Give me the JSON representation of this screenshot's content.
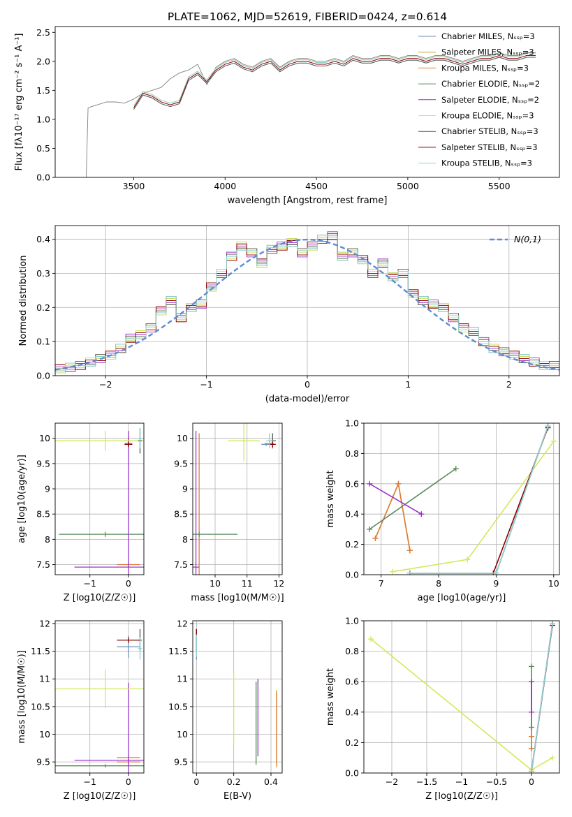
{
  "figure_title": "PLATE=1062, MJD=52619, FIBERID=0424, z=0.614",
  "series_styles": [
    {
      "name": "Chabrier MILES",
      "color": "#6c8ebf"
    },
    {
      "name": "Salpeter MILES",
      "color": "#c9a227"
    },
    {
      "name": "Kroupa MILES",
      "color": "#e07b39"
    },
    {
      "name": "Chabrier ELODIE",
      "color": "#5a8a5a"
    },
    {
      "name": "Salpeter ELODIE",
      "color": "#9932cc"
    },
    {
      "name": "Kroupa ELODIE",
      "color": "#d4e85a"
    },
    {
      "name": "Chabrier STELIB",
      "color": "#555555"
    },
    {
      "name": "Salpeter STELIB",
      "color": "#8b0000"
    },
    {
      "name": "Kroupa STELIB",
      "color": "#8fd3d3"
    }
  ],
  "chart_data": [
    {
      "id": "spectrum",
      "type": "line",
      "xlabel": "wavelength [Angstrom, rest frame]",
      "ylabel": "Flux [fλ10⁻¹⁷ erg cm⁻² s⁻¹ A⁻¹]",
      "xlim": [
        3070,
        5830
      ],
      "ylim": [
        0,
        2.6
      ],
      "xticks": [
        3500,
        4000,
        4500,
        5000,
        5500
      ],
      "yticks": [
        0.0,
        0.5,
        1.0,
        1.5,
        2.0,
        2.5
      ],
      "legend_position": "top-right",
      "legend": [
        "Chabrier MILES, N_SSP=3",
        "Salpeter MILES, N_SSP=3",
        "Kroupa MILES, N_SSP=3",
        "Chabrier ELODIE, N_SSP=2",
        "Salpeter ELODIE, N_SSP=2",
        "Kroupa ELODIE, N_SSP=3",
        "Chabrier STELIB, N_SSP=3",
        "Salpeter STELIB, N_SSP=3",
        "Kroupa STELIB, N_SSP=3"
      ],
      "data_x": [
        3240,
        3250,
        3300,
        3350,
        3400,
        3450,
        3500,
        3550,
        3600,
        3650,
        3700,
        3750,
        3800,
        3850,
        3900,
        3950,
        4000,
        4050,
        4100,
        4150,
        4200,
        4250,
        4300,
        4350,
        4400,
        4450,
        4500,
        4550,
        4600,
        4650,
        4700,
        4750,
        4800,
        4850,
        4900,
        4950,
        5000,
        5050,
        5100,
        5150,
        5200,
        5250,
        5300,
        5350,
        5400,
        5450,
        5500,
        5550,
        5600,
        5650,
        5700
      ],
      "data_y": [
        0.0,
        1.2,
        1.25,
        1.3,
        1.3,
        1.28,
        1.35,
        1.45,
        1.5,
        1.55,
        1.7,
        1.8,
        1.85,
        1.95,
        1.6,
        1.9,
        2.0,
        2.05,
        1.95,
        1.9,
        2.0,
        2.05,
        1.9,
        2.0,
        2.05,
        2.05,
        2.0,
        2.0,
        2.05,
        2.0,
        2.1,
        2.05,
        2.05,
        2.1,
        2.1,
        2.05,
        2.1,
        2.1,
        2.05,
        2.1,
        2.1,
        2.05,
        2.0,
        2.05,
        2.1,
        2.1,
        2.15,
        2.1,
        2.1,
        2.15,
        2.15
      ],
      "model_x": [
        3500,
        3550,
        3600,
        3650,
        3700,
        3750,
        3800,
        3850,
        3900,
        3950,
        4000,
        4050,
        4100,
        4150,
        4200,
        4250,
        4300,
        4350,
        4400,
        4450,
        4500,
        4550,
        4600,
        4650,
        4700,
        4750,
        4800,
        4850,
        4900,
        4950,
        5000,
        5050,
        5100,
        5150,
        5200,
        5250,
        5300,
        5350,
        5400,
        5450,
        5500,
        5550,
        5600,
        5650,
        5700
      ],
      "model_y": [
        1.2,
        1.45,
        1.4,
        1.3,
        1.25,
        1.3,
        1.7,
        1.8,
        1.65,
        1.85,
        1.95,
        2.0,
        1.9,
        1.85,
        1.95,
        2.0,
        1.85,
        1.95,
        2.0,
        2.0,
        1.95,
        1.95,
        2.0,
        1.95,
        2.05,
        2.0,
        2.0,
        2.05,
        2.05,
        2.0,
        2.05,
        2.05,
        2.0,
        2.05,
        2.05,
        2.0,
        1.95,
        2.0,
        2.05,
        2.05,
        2.1,
        2.05,
        2.05,
        2.1,
        2.1
      ]
    },
    {
      "id": "residuals",
      "type": "line",
      "xlabel": "(data-model)/error",
      "ylabel": "Normed distribution",
      "xlim": [
        -2.5,
        2.5
      ],
      "ylim": [
        0,
        0.44
      ],
      "xticks": [
        -2,
        -1,
        0,
        1,
        2
      ],
      "yticks": [
        0.0,
        0.1,
        0.2,
        0.3,
        0.4
      ],
      "grid": true,
      "legend_position": "top-right",
      "legend": [
        "N(0,1)"
      ],
      "bin_centers": [
        -2.45,
        -2.35,
        -2.25,
        -2.15,
        -2.05,
        -1.95,
        -1.85,
        -1.75,
        -1.65,
        -1.55,
        -1.45,
        -1.35,
        -1.25,
        -1.15,
        -1.05,
        -0.95,
        -0.85,
        -0.75,
        -0.65,
        -0.55,
        -0.45,
        -0.35,
        -0.25,
        -0.15,
        -0.05,
        0.05,
        0.15,
        0.25,
        0.35,
        0.45,
        0.55,
        0.65,
        0.75,
        0.85,
        0.95,
        1.05,
        1.15,
        1.25,
        1.35,
        1.45,
        1.55,
        1.65,
        1.75,
        1.85,
        1.95,
        2.05,
        2.15,
        2.25,
        2.35,
        2.45
      ],
      "bin_values": [
        0.02,
        0.025,
        0.03,
        0.04,
        0.05,
        0.06,
        0.08,
        0.11,
        0.12,
        0.14,
        0.19,
        0.22,
        0.17,
        0.2,
        0.21,
        0.26,
        0.3,
        0.35,
        0.38,
        0.36,
        0.33,
        0.37,
        0.38,
        0.39,
        0.36,
        0.38,
        0.4,
        0.41,
        0.35,
        0.36,
        0.34,
        0.3,
        0.33,
        0.29,
        0.3,
        0.24,
        0.22,
        0.21,
        0.2,
        0.17,
        0.14,
        0.13,
        0.1,
        0.08,
        0.07,
        0.06,
        0.05,
        0.04,
        0.03,
        0.03
      ],
      "gaussian_mu": 0,
      "gaussian_sigma": 1
    },
    {
      "id": "age-vs-Z",
      "type": "scatter",
      "xlabel": "Z [log10(Z/Z☉)]",
      "ylabel": "age  [log10(age/yr)]",
      "xlim": [
        -1.9,
        0.4
      ],
      "ylim": [
        7.3,
        10.3
      ],
      "xticks": [
        -1,
        0
      ],
      "yticks": [
        7.5,
        8.0,
        8.5,
        9.0,
        9.5,
        10.0
      ],
      "points": [
        {
          "series": 0,
          "x": 0.0,
          "y": 9.9,
          "xerr": 0.1,
          "yerr": 0.1
        },
        {
          "series": 1,
          "x": 0.0,
          "y": 9.95,
          "xerr": 0.1,
          "yerr": 0.1
        },
        {
          "series": 2,
          "x": 0.0,
          "y": 7.5,
          "xerr": 0.3,
          "yerr": 0.05
        },
        {
          "series": 3,
          "x": -0.6,
          "y": 8.1,
          "xerr": 1.2,
          "yerr": 0.05
        },
        {
          "series": 4,
          "x": 0.0,
          "y": 7.45,
          "xerr": 1.4,
          "yerr": 2.7
        },
        {
          "series": 5,
          "x": -0.6,
          "y": 9.95,
          "xerr": 1.3,
          "yerr": 0.2
        },
        {
          "series": 6,
          "x": 0.3,
          "y": 9.95,
          "xerr": 0.05,
          "yerr": 0.25
        },
        {
          "series": 7,
          "x": 0.0,
          "y": 9.88,
          "xerr": 0.1,
          "yerr": 0.05
        },
        {
          "series": 8,
          "x": 0.3,
          "y": 10.0,
          "xerr": 0.05,
          "yerr": 0.2
        }
      ]
    },
    {
      "id": "age-vs-mass",
      "type": "scatter",
      "xlabel": "mass [log10(M/M☉)]",
      "ylabel": "",
      "xlim": [
        9.3,
        12.1
      ],
      "ylim": [
        7.3,
        10.3
      ],
      "xticks": [
        10,
        11,
        12
      ],
      "yticks": [
        7.5,
        8.0,
        8.5,
        9.0,
        9.5,
        10.0
      ],
      "points": [
        {
          "series": 0,
          "x": 11.6,
          "y": 9.88,
          "xerr": 0.15,
          "yerr": 0.03
        },
        {
          "series": 1,
          "x": 11.7,
          "y": 9.9,
          "xerr": 0.15,
          "yerr": 0.03
        },
        {
          "series": 2,
          "x": 9.5,
          "y": 7.5,
          "xerr": 0.0,
          "yerr": 2.6
        },
        {
          "series": 3,
          "x": 9.5,
          "y": 8.1,
          "xerr": 1.2,
          "yerr": 0.05
        },
        {
          "series": 4,
          "x": 9.4,
          "y": 7.45,
          "xerr": 0.1,
          "yerr": 2.7
        },
        {
          "series": 5,
          "x": 10.9,
          "y": 9.95,
          "xerr": 0.5,
          "yerr": 0.4
        },
        {
          "series": 6,
          "x": 11.8,
          "y": 9.95,
          "xerr": 0.1,
          "yerr": 0.15
        },
        {
          "series": 7,
          "x": 11.8,
          "y": 9.88,
          "xerr": 0.1,
          "yerr": 0.05
        },
        {
          "series": 8,
          "x": 11.7,
          "y": 9.95,
          "xerr": 0.1,
          "yerr": 0.15
        }
      ]
    },
    {
      "id": "weight-vs-age",
      "type": "line",
      "xlabel": "age  [log10(age/yr)]",
      "ylabel": "mass weight",
      "xlim": [
        6.7,
        10.1
      ],
      "ylim": [
        0,
        1.0
      ],
      "xticks": [
        7,
        8,
        9,
        10
      ],
      "yticks": [
        0.0,
        0.2,
        0.4,
        0.6,
        0.8,
        1.0
      ],
      "grid": true,
      "series": [
        {
          "series": 0,
          "x": [
            7.5,
            9.0,
            9.9
          ],
          "y": [
            0.01,
            0.01,
            0.98
          ]
        },
        {
          "series": 1,
          "x": [
            6.9,
            7.3,
            7.5
          ],
          "y": [
            0.24,
            0.6,
            0.16
          ]
        },
        {
          "series": 2,
          "x": [
            6.9,
            7.3,
            7.5
          ],
          "y": [
            0.24,
            0.6,
            0.16
          ]
        },
        {
          "series": 3,
          "x": [
            6.8,
            8.3
          ],
          "y": [
            0.3,
            0.7
          ]
        },
        {
          "series": 4,
          "x": [
            6.8,
            7.7
          ],
          "y": [
            0.6,
            0.4
          ]
        },
        {
          "series": 5,
          "x": [
            7.2,
            8.5,
            10.0
          ],
          "y": [
            0.02,
            0.1,
            0.88
          ]
        },
        {
          "series": 6,
          "x": [
            7.5,
            9.0,
            9.9
          ],
          "y": [
            0.01,
            0.01,
            0.98
          ]
        },
        {
          "series": 7,
          "x": [
            7.5,
            8.95,
            9.9
          ],
          "y": [
            0.01,
            0.01,
            0.97
          ]
        },
        {
          "series": 8,
          "x": [
            7.5,
            9.0,
            9.9
          ],
          "y": [
            0.01,
            0.01,
            0.98
          ]
        }
      ]
    },
    {
      "id": "mass-vs-Z",
      "type": "scatter",
      "xlabel": "Z [log10(Z/Z☉)]",
      "ylabel": "mass [log10(M/M☉)]",
      "xlim": [
        -1.9,
        0.4
      ],
      "ylim": [
        9.3,
        12.05
      ],
      "xticks": [
        -1,
        0
      ],
      "yticks": [
        9.5,
        10.0,
        10.5,
        11.0,
        11.5,
        12.0
      ],
      "points": [
        {
          "series": 0,
          "x": 0.0,
          "y": 11.58,
          "xerr": 0.3,
          "yerr": 0.2
        },
        {
          "series": 1,
          "x": 0.0,
          "y": 9.58,
          "xerr": 0.3,
          "yerr": 0.05
        },
        {
          "series": 2,
          "x": 0.0,
          "y": 9.5,
          "xerr": 0.3,
          "yerr": 0.05
        },
        {
          "series": 3,
          "x": -0.6,
          "y": 9.43,
          "xerr": 1.3,
          "yerr": 0.03
        },
        {
          "series": 4,
          "x": 0.0,
          "y": 9.53,
          "xerr": 1.4,
          "yerr": 1.4
        },
        {
          "series": 5,
          "x": -0.6,
          "y": 10.82,
          "xerr": 1.3,
          "yerr": 0.35
        },
        {
          "series": 6,
          "x": 0.3,
          "y": 11.7,
          "xerr": 0.05,
          "yerr": 0.2
        },
        {
          "series": 7,
          "x": 0.0,
          "y": 11.7,
          "xerr": 0.3,
          "yerr": 0.05
        },
        {
          "series": 8,
          "x": 0.3,
          "y": 11.55,
          "xerr": 0.05,
          "yerr": 0.2
        }
      ]
    },
    {
      "id": "mass-vs-EBV",
      "type": "scatter",
      "xlabel": "E(B-V)",
      "ylabel": "",
      "xlim": [
        -0.02,
        0.46
      ],
      "ylim": [
        9.3,
        12.05
      ],
      "xticks": [
        0.0,
        0.2,
        0.4
      ],
      "yticks": [
        9.5,
        10.0,
        10.5,
        11.0,
        11.5,
        12.0
      ],
      "points": [
        {
          "series": 0,
          "x": 0.0,
          "y": 11.6,
          "xerr": 0.0,
          "yerr": 0.25
        },
        {
          "series": 1,
          "x": 0.43,
          "y": 10.1,
          "xerr": 0.0,
          "yerr": 0.7
        },
        {
          "series": 2,
          "x": 0.43,
          "y": 10.1,
          "xerr": 0.0,
          "yerr": 0.65
        },
        {
          "series": 3,
          "x": 0.32,
          "y": 10.2,
          "xerr": 0.0,
          "yerr": 0.75
        },
        {
          "series": 4,
          "x": 0.33,
          "y": 10.3,
          "xerr": 0.0,
          "yerr": 0.7
        },
        {
          "series": 5,
          "x": 0.2,
          "y": 10.45,
          "xerr": 0.0,
          "yerr": 0.65
        },
        {
          "series": 6,
          "x": 0.0,
          "y": 11.7,
          "xerr": 0.0,
          "yerr": 0.2
        },
        {
          "series": 7,
          "x": 0.0,
          "y": 11.7,
          "xerr": 0.0,
          "yerr": 0.2
        },
        {
          "series": 8,
          "x": 0.0,
          "y": 11.6,
          "xerr": 0.0,
          "yerr": 0.2
        }
      ]
    },
    {
      "id": "weight-vs-Z",
      "type": "line",
      "xlabel": "Z [log10(Z/Z☉)]",
      "ylabel": "mass weight",
      "xlim": [
        -2.4,
        0.4
      ],
      "ylim": [
        0,
        1.0
      ],
      "xticks": [
        -2.0,
        -1.5,
        -1.0,
        -0.5,
        0.0
      ],
      "yticks": [
        0.0,
        0.2,
        0.4,
        0.6,
        0.8,
        1.0
      ],
      "grid": true,
      "series": [
        {
          "series": 0,
          "x": [
            0.0,
            0.3
          ],
          "y": [
            0.01,
            0.98
          ]
        },
        {
          "series": 1,
          "x": [
            0.0,
            0.0,
            0.0
          ],
          "y": [
            0.16,
            0.24,
            0.6
          ]
        },
        {
          "series": 2,
          "x": [
            0.0,
            0.0,
            0.0
          ],
          "y": [
            0.16,
            0.24,
            0.6
          ]
        },
        {
          "series": 3,
          "x": [
            0.0,
            0.0
          ],
          "y": [
            0.3,
            0.7
          ]
        },
        {
          "series": 4,
          "x": [
            0.0,
            0.0
          ],
          "y": [
            0.4,
            0.6
          ]
        },
        {
          "series": 5,
          "x": [
            -2.3,
            0.0,
            0.3
          ],
          "y": [
            0.88,
            0.02,
            0.1
          ]
        },
        {
          "series": 6,
          "x": [
            0.0,
            0.3
          ],
          "y": [
            0.01,
            0.98
          ]
        },
        {
          "series": 7,
          "x": [
            0.0,
            0.3
          ],
          "y": [
            0.01,
            0.97
          ]
        },
        {
          "series": 8,
          "x": [
            0.0,
            0.3
          ],
          "y": [
            0.01,
            0.98
          ]
        }
      ]
    }
  ]
}
